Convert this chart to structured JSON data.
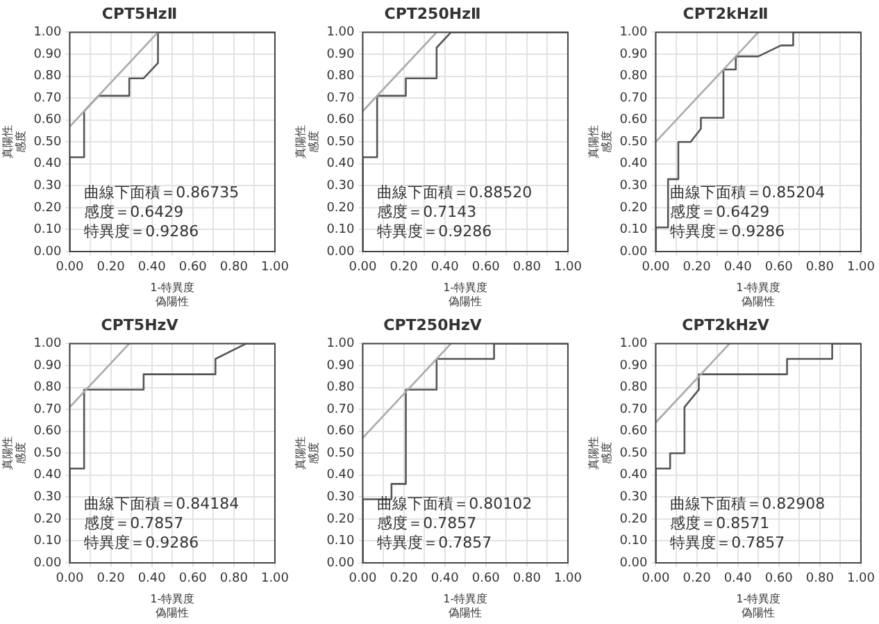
{
  "chart_data": [
    {
      "type": "line",
      "title": "CPT5HzⅡ",
      "xlabel": "1-特異度偽陽性",
      "ylabel": "真陽性感度",
      "xlim": [
        0,
        1
      ],
      "ylim": [
        0,
        1
      ],
      "xticks": [
        {
          "value": 0,
          "label": "0.00"
        },
        {
          "value": 0.1,
          "label": null
        },
        {
          "value": 0.2,
          "label": "0.20"
        },
        {
          "value": 0.3,
          "label": null
        },
        {
          "value": 0.4,
          "label": "0.40"
        },
        {
          "value": 0.5,
          "label": null
        },
        {
          "value": 0.6,
          "label": "0.60"
        },
        {
          "value": 0.7,
          "label": null
        },
        {
          "value": 0.8,
          "label": "0.80"
        },
        {
          "value": 0.9,
          "label": null
        },
        {
          "value": 1,
          "label": "1.00"
        }
      ],
      "yticks": [
        {
          "value": 0,
          "label": "0.00"
        },
        {
          "value": 0.1,
          "label": "0.10"
        },
        {
          "value": 0.2,
          "label": "0.20"
        },
        {
          "value": 0.3,
          "label": "0.30"
        },
        {
          "value": 0.4,
          "label": "0.40"
        },
        {
          "value": 0.5,
          "label": "0.50"
        },
        {
          "value": 0.6,
          "label": "0.60"
        },
        {
          "value": 0.7,
          "label": "0.70"
        },
        {
          "value": 0.8,
          "label": "0.80"
        },
        {
          "value": 0.9,
          "label": "0.90"
        },
        {
          "value": 1,
          "label": "1.00"
        }
      ],
      "grid": true,
      "marker": "none",
      "line_style": "solid",
      "series": [
        {
          "color": "#aaaaaa",
          "x": [
            0,
            0.43
          ],
          "values": [
            0.57,
            1
          ]
        },
        {
          "color": "#555555",
          "x": [
            0,
            0,
            0.07,
            0.07,
            0.14,
            0.29,
            0.29,
            0.36,
            0.43,
            0.43,
            1
          ],
          "values": [
            0,
            0.43,
            0.43,
            0.64,
            0.71,
            0.71,
            0.79,
            0.79,
            0.86,
            1,
            1
          ]
        }
      ],
      "annotations": [
        "曲線下面積＝0.86735",
        "感度＝0.6429",
        "特異度＝0.9286"
      ]
    },
    {
      "type": "line",
      "title": "CPT250HzⅡ",
      "xlabel": "1-特異度偽陽性",
      "ylabel": "真陽性感度",
      "xlim": [
        0,
        1
      ],
      "ylim": [
        0,
        1
      ],
      "xticks": [
        {
          "value": 0,
          "label": "0.00"
        },
        {
          "value": 0.1,
          "label": null
        },
        {
          "value": 0.2,
          "label": "0.20"
        },
        {
          "value": 0.3,
          "label": null
        },
        {
          "value": 0.4,
          "label": "0.40"
        },
        {
          "value": 0.5,
          "label": null
        },
        {
          "value": 0.6,
          "label": "0.60"
        },
        {
          "value": 0.7,
          "label": null
        },
        {
          "value": 0.8,
          "label": "0.80"
        },
        {
          "value": 0.9,
          "label": null
        },
        {
          "value": 1,
          "label": "1.00"
        }
      ],
      "yticks": [
        {
          "value": 0,
          "label": "0.00"
        },
        {
          "value": 0.1,
          "label": "0.10"
        },
        {
          "value": 0.2,
          "label": "0.20"
        },
        {
          "value": 0.3,
          "label": "0.30"
        },
        {
          "value": 0.4,
          "label": "0.40"
        },
        {
          "value": 0.5,
          "label": "0.50"
        },
        {
          "value": 0.6,
          "label": "0.60"
        },
        {
          "value": 0.7,
          "label": "0.70"
        },
        {
          "value": 0.8,
          "label": "0.80"
        },
        {
          "value": 0.9,
          "label": "0.90"
        },
        {
          "value": 1,
          "label": "1.00"
        }
      ],
      "grid": true,
      "marker": "none",
      "line_style": "solid",
      "series": [
        {
          "color": "#aaaaaa",
          "x": [
            0,
            0.36
          ],
          "values": [
            0.64,
            1
          ]
        },
        {
          "color": "#555555",
          "x": [
            0,
            0,
            0.07,
            0.07,
            0.21,
            0.21,
            0.36,
            0.36,
            0.43,
            1
          ],
          "values": [
            0,
            0.43,
            0.43,
            0.71,
            0.71,
            0.79,
            0.79,
            0.93,
            1,
            1
          ]
        }
      ],
      "annotations": [
        "曲線下面積＝0.88520",
        "感度＝0.7143",
        "特異度＝0.9286"
      ]
    },
    {
      "type": "line",
      "title": "CPT2kHzⅡ",
      "xlabel": "1-特異度偽陽性",
      "ylabel": "真陽性感度",
      "xlim": [
        0,
        1
      ],
      "ylim": [
        0,
        1
      ],
      "xticks": [
        {
          "value": 0,
          "label": "0.00"
        },
        {
          "value": 0.1,
          "label": null
        },
        {
          "value": 0.2,
          "label": "0.20"
        },
        {
          "value": 0.3,
          "label": null
        },
        {
          "value": 0.4,
          "label": "0.40"
        },
        {
          "value": 0.5,
          "label": null
        },
        {
          "value": 0.6,
          "label": "0.60"
        },
        {
          "value": 0.7,
          "label": null
        },
        {
          "value": 0.8,
          "label": "0.80"
        },
        {
          "value": 0.9,
          "label": null
        },
        {
          "value": 1,
          "label": "1.00"
        }
      ],
      "yticks": [
        {
          "value": 0,
          "label": "0.00"
        },
        {
          "value": 0.1,
          "label": "0.10"
        },
        {
          "value": 0.2,
          "label": "0.20"
        },
        {
          "value": 0.3,
          "label": "0.30"
        },
        {
          "value": 0.4,
          "label": "0.40"
        },
        {
          "value": 0.5,
          "label": "0.50"
        },
        {
          "value": 0.6,
          "label": "0.60"
        },
        {
          "value": 0.7,
          "label": "0.70"
        },
        {
          "value": 0.8,
          "label": "0.80"
        },
        {
          "value": 0.9,
          "label": "0.90"
        },
        {
          "value": 1,
          "label": "1.00"
        }
      ],
      "grid": true,
      "marker": "none",
      "line_style": "solid",
      "series": [
        {
          "color": "#aaaaaa",
          "x": [
            0,
            0.5
          ],
          "values": [
            0.5,
            1
          ]
        },
        {
          "color": "#555555",
          "x": [
            0,
            0,
            0.06,
            0.06,
            0.11,
            0.11,
            0.17,
            0.22,
            0.22,
            0.33,
            0.33,
            0.39,
            0.39,
            0.5,
            0.61,
            0.67,
            0.67,
            1
          ],
          "values": [
            0,
            0.11,
            0.11,
            0.33,
            0.33,
            0.5,
            0.5,
            0.56,
            0.61,
            0.61,
            0.83,
            0.83,
            0.89,
            0.89,
            0.94,
            0.94,
            1,
            1
          ]
        }
      ],
      "annotations": [
        "曲線下面積＝0.85204",
        "感度＝0.6429",
        "特異度＝0.9286"
      ]
    },
    {
      "type": "line",
      "title": "CPT5HzⅤ",
      "xlabel": "1-特異度偽陽性",
      "ylabel": "真陽性感度",
      "xlim": [
        0,
        1
      ],
      "ylim": [
        0,
        1
      ],
      "xticks": [
        {
          "value": 0,
          "label": "0.00"
        },
        {
          "value": 0.1,
          "label": null
        },
        {
          "value": 0.2,
          "label": "0.20"
        },
        {
          "value": 0.3,
          "label": null
        },
        {
          "value": 0.4,
          "label": "0.40"
        },
        {
          "value": 0.5,
          "label": null
        },
        {
          "value": 0.6,
          "label": "0.60"
        },
        {
          "value": 0.7,
          "label": null
        },
        {
          "value": 0.8,
          "label": "0.80"
        },
        {
          "value": 0.9,
          "label": null
        },
        {
          "value": 1,
          "label": "1.00"
        }
      ],
      "yticks": [
        {
          "value": 0,
          "label": "0.00"
        },
        {
          "value": 0.1,
          "label": "0.10"
        },
        {
          "value": 0.2,
          "label": "0.20"
        },
        {
          "value": 0.3,
          "label": "0.30"
        },
        {
          "value": 0.4,
          "label": "0.40"
        },
        {
          "value": 0.5,
          "label": "0.50"
        },
        {
          "value": 0.6,
          "label": "0.60"
        },
        {
          "value": 0.7,
          "label": "0.70"
        },
        {
          "value": 0.8,
          "label": "0.80"
        },
        {
          "value": 0.9,
          "label": "0.90"
        },
        {
          "value": 1,
          "label": "1.00"
        }
      ],
      "grid": true,
      "marker": "none",
      "line_style": "solid",
      "series": [
        {
          "color": "#aaaaaa",
          "x": [
            0,
            0.29
          ],
          "values": [
            0.71,
            1
          ]
        },
        {
          "color": "#555555",
          "x": [
            0,
            0,
            0.07,
            0.07,
            0.36,
            0.36,
            0.71,
            0.71,
            0.86,
            1
          ],
          "values": [
            0,
            0.43,
            0.43,
            0.79,
            0.79,
            0.86,
            0.86,
            0.93,
            1,
            1
          ]
        }
      ],
      "annotations": [
        "曲線下面積＝0.84184",
        "感度＝0.7857",
        "特異度＝0.9286"
      ]
    },
    {
      "type": "line",
      "title": "CPT250HzⅤ",
      "xlabel": "1-特異度偽陽性",
      "ylabel": "真陽性感度",
      "xlim": [
        0,
        1
      ],
      "ylim": [
        0,
        1
      ],
      "xticks": [
        {
          "value": 0,
          "label": "0.00"
        },
        {
          "value": 0.1,
          "label": null
        },
        {
          "value": 0.2,
          "label": "0.20"
        },
        {
          "value": 0.3,
          "label": null
        },
        {
          "value": 0.4,
          "label": "0.40"
        },
        {
          "value": 0.5,
          "label": null
        },
        {
          "value": 0.6,
          "label": "0.60"
        },
        {
          "value": 0.7,
          "label": null
        },
        {
          "value": 0.8,
          "label": "0.80"
        },
        {
          "value": 0.9,
          "label": null
        },
        {
          "value": 1,
          "label": "1.00"
        }
      ],
      "yticks": [
        {
          "value": 0,
          "label": "0.00"
        },
        {
          "value": 0.1,
          "label": "0.10"
        },
        {
          "value": 0.2,
          "label": "0.20"
        },
        {
          "value": 0.3,
          "label": "0.30"
        },
        {
          "value": 0.4,
          "label": "0.40"
        },
        {
          "value": 0.5,
          "label": "0.50"
        },
        {
          "value": 0.6,
          "label": "0.60"
        },
        {
          "value": 0.7,
          "label": "0.70"
        },
        {
          "value": 0.8,
          "label": "0.80"
        },
        {
          "value": 0.9,
          "label": "0.90"
        },
        {
          "value": 1,
          "label": "1.00"
        }
      ],
      "grid": true,
      "marker": "none",
      "line_style": "solid",
      "series": [
        {
          "color": "#aaaaaa",
          "x": [
            0,
            0.43
          ],
          "values": [
            0.57,
            1
          ]
        },
        {
          "color": "#555555",
          "x": [
            0,
            0,
            0.14,
            0.14,
            0.21,
            0.21,
            0.36,
            0.36,
            0.64,
            0.64,
            1
          ],
          "values": [
            0,
            0.29,
            0.29,
            0.36,
            0.36,
            0.79,
            0.79,
            0.93,
            0.93,
            1,
            1
          ]
        }
      ],
      "annotations": [
        "曲線下面積＝0.80102",
        "感度＝0.7857",
        "特異度＝0.7857"
      ]
    },
    {
      "type": "line",
      "title": "CPT2kHzⅤ",
      "xlabel": "1-特異度偽陽性",
      "ylabel": "真陽性感度",
      "xlim": [
        0,
        1
      ],
      "ylim": [
        0,
        1
      ],
      "xticks": [
        {
          "value": 0,
          "label": "0.00"
        },
        {
          "value": 0.1,
          "label": null
        },
        {
          "value": 0.2,
          "label": "0.20"
        },
        {
          "value": 0.3,
          "label": null
        },
        {
          "value": 0.4,
          "label": "0.40"
        },
        {
          "value": 0.5,
          "label": null
        },
        {
          "value": 0.6,
          "label": "0.60"
        },
        {
          "value": 0.7,
          "label": null
        },
        {
          "value": 0.8,
          "label": "0.80"
        },
        {
          "value": 0.9,
          "label": null
        },
        {
          "value": 1,
          "label": "1.00"
        }
      ],
      "yticks": [
        {
          "value": 0,
          "label": "0.00"
        },
        {
          "value": 0.1,
          "label": "0.10"
        },
        {
          "value": 0.2,
          "label": "0.20"
        },
        {
          "value": 0.3,
          "label": "0.30"
        },
        {
          "value": 0.4,
          "label": "0.40"
        },
        {
          "value": 0.5,
          "label": "0.50"
        },
        {
          "value": 0.6,
          "label": "0.60"
        },
        {
          "value": 0.7,
          "label": "0.70"
        },
        {
          "value": 0.8,
          "label": "0.80"
        },
        {
          "value": 0.9,
          "label": "0.90"
        },
        {
          "value": 1,
          "label": "1.00"
        }
      ],
      "grid": true,
      "marker": "none",
      "line_style": "solid",
      "series": [
        {
          "color": "#aaaaaa",
          "x": [
            0,
            0.36
          ],
          "values": [
            0.64,
            1
          ]
        },
        {
          "color": "#555555",
          "x": [
            0,
            0,
            0.07,
            0.07,
            0.14,
            0.14,
            0.21,
            0.21,
            0.64,
            0.64,
            0.86,
            0.86,
            1
          ],
          "values": [
            0,
            0.43,
            0.43,
            0.5,
            0.5,
            0.71,
            0.79,
            0.86,
            0.86,
            0.93,
            0.93,
            1,
            1
          ]
        }
      ],
      "annotations": [
        "曲線下面積＝0.82908",
        "感度＝0.8571",
        "特異度＝0.7857"
      ]
    }
  ]
}
